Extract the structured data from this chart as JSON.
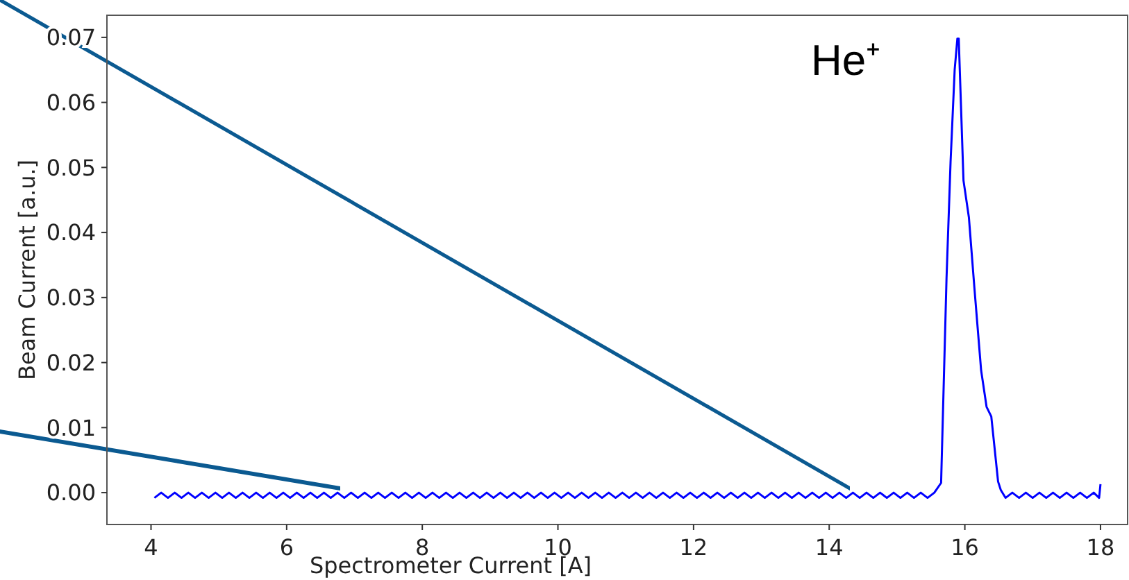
{
  "chart_data": {
    "type": "line",
    "xlabel": "Spectrometer Current [A]",
    "ylabel": "Beam Current [a.u.]",
    "annotations": [
      "He⁺"
    ],
    "xlim": [
      3.35,
      18.4
    ],
    "ylim": [
      -0.0049,
      0.0734
    ],
    "xticks": [
      4,
      6,
      8,
      10,
      12,
      14,
      16,
      18
    ],
    "yticks": [
      {
        "value": 0,
        "label": "0.00"
      },
      {
        "value": 0.01,
        "label": "0.01"
      },
      {
        "value": 0.02,
        "label": "0.02"
      },
      {
        "value": 0.03,
        "label": "0.03"
      },
      {
        "value": 0.04,
        "label": "0.04"
      },
      {
        "value": 0.05,
        "label": "0.05"
      },
      {
        "value": 0.06,
        "label": "0.06"
      },
      {
        "value": 0.07,
        "label": "0.07"
      }
    ],
    "grid": false,
    "marker": "none",
    "line_style": "solid",
    "series": [
      {
        "color": "#0000ff",
        "x": [
          4.05,
          4.15,
          4.25,
          4.35,
          4.45,
          4.55,
          4.65,
          4.75,
          4.85,
          4.95,
          5.05,
          5.15,
          5.25,
          5.35,
          5.45,
          5.55,
          5.65,
          5.75,
          5.85,
          5.95,
          6.05,
          6.15,
          6.25,
          6.35,
          6.45,
          6.55,
          6.65,
          6.75,
          6.85,
          6.95,
          7.05,
          7.15,
          7.25,
          7.35,
          7.45,
          7.55,
          7.65,
          7.75,
          7.85,
          7.95,
          8.05,
          8.15,
          8.25,
          8.35,
          8.45,
          8.55,
          8.65,
          8.75,
          8.85,
          8.95,
          9.05,
          9.15,
          9.25,
          9.35,
          9.45,
          9.55,
          9.65,
          9.75,
          9.85,
          9.95,
          10.05,
          10.15,
          10.25,
          10.35,
          10.45,
          10.55,
          10.65,
          10.75,
          10.85,
          10.95,
          11.05,
          11.15,
          11.25,
          11.35,
          11.45,
          11.55,
          11.65,
          11.75,
          11.85,
          11.95,
          12.05,
          12.15,
          12.25,
          12.35,
          12.45,
          12.55,
          12.65,
          12.75,
          12.85,
          12.95,
          13.05,
          13.15,
          13.25,
          13.35,
          13.45,
          13.55,
          13.65,
          13.75,
          13.85,
          13.95,
          14.05,
          14.15,
          14.25,
          14.35,
          14.45,
          14.55,
          14.65,
          14.75,
          14.85,
          14.95,
          15.05,
          15.15,
          15.25,
          15.35,
          15.45,
          15.55,
          15.65,
          15.73,
          15.79,
          15.85,
          15.89,
          15.91,
          15.98,
          16.06,
          16.14,
          16.24,
          16.32,
          16.39,
          16.49,
          16.53,
          16.6,
          16.7,
          16.8,
          16.9,
          17.0,
          17.1,
          17.2,
          17.3,
          17.4,
          17.5,
          17.6,
          17.7,
          17.8,
          17.9,
          17.98,
          18.0
        ],
        "values": [
          -0.0008,
          0,
          -0.0008,
          0,
          -0.0008,
          0,
          -0.0008,
          0,
          -0.0008,
          0,
          -0.0008,
          0,
          -0.0008,
          0,
          -0.0008,
          0,
          -0.0008,
          0,
          -0.0008,
          0,
          -0.0008,
          0,
          -0.0008,
          0,
          -0.0008,
          0,
          -0.0008,
          0,
          -0.0008,
          0,
          -0.0008,
          0,
          -0.0008,
          0,
          -0.0008,
          0,
          -0.0008,
          0,
          -0.0008,
          0,
          -0.0008,
          0,
          -0.0008,
          0,
          -0.0008,
          0,
          -0.0008,
          0,
          -0.0008,
          0,
          -0.0008,
          0,
          -0.0008,
          0,
          -0.0008,
          0,
          -0.0008,
          0,
          -0.0008,
          0,
          -0.0008,
          0,
          -0.0008,
          0,
          -0.0008,
          0,
          -0.0008,
          0,
          -0.0008,
          0,
          -0.0008,
          0,
          -0.0008,
          0,
          -0.0008,
          0,
          -0.0008,
          0,
          -0.0008,
          0,
          -0.0008,
          0,
          -0.0008,
          0,
          -0.0008,
          0,
          -0.0008,
          0,
          -0.0008,
          0,
          -0.0008,
          0,
          -0.0008,
          0,
          -0.0008,
          0,
          -0.0008,
          0,
          -0.0008,
          0,
          -0.0008,
          0,
          -0.0008,
          0,
          -0.0008,
          0,
          -0.0008,
          0,
          -0.0008,
          0,
          -0.0008,
          0,
          -0.0008,
          0,
          -0.0008,
          0,
          0.0015,
          0.033,
          0.051,
          0.065,
          0.0698,
          0.0698,
          0.048,
          0.0423,
          0.0316,
          0.0188,
          0.0132,
          0.0117,
          0.0017,
          0.0004,
          -0.0008,
          0,
          -0.0008,
          0,
          -0.0008,
          0,
          -0.0008,
          0,
          -0.0008,
          0,
          -0.0008,
          0,
          -0.0008,
          0,
          -0.0008,
          0.0013
        ]
      }
    ]
  }
}
